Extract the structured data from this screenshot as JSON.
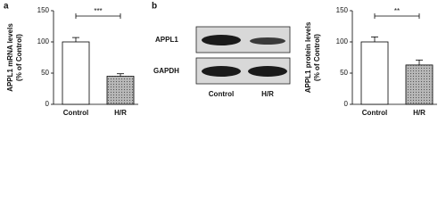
{
  "panel_labels": [
    "a",
    "b"
  ],
  "blot": {
    "bands": [
      "APPL1",
      "GAPDH"
    ],
    "lanes": [
      "Control",
      "H/R"
    ]
  },
  "chart_data": [
    {
      "type": "bar",
      "ylabel": [
        "APPL1 mRNA levels",
        "(% of Control)"
      ],
      "categories": [
        "Control",
        "H/R"
      ],
      "values": [
        100,
        45
      ],
      "errors": [
        7,
        4
      ],
      "colors": [
        "#ffffff",
        "#b8b8b8"
      ],
      "patterns": [
        null,
        "dots"
      ],
      "ylim": [
        0,
        150
      ],
      "yticks": [
        0,
        50,
        100,
        150
      ],
      "significance": "***"
    },
    {
      "type": "bar",
      "ylabel": [
        "APPL1 protein levels",
        "(% of Control)"
      ],
      "categories": [
        "Control",
        "H/R"
      ],
      "values": [
        100,
        63
      ],
      "errors": [
        8,
        8
      ],
      "colors": [
        "#ffffff",
        "#b8b8b8"
      ],
      "patterns": [
        null,
        "dots"
      ],
      "ylim": [
        0,
        150
      ],
      "yticks": [
        0,
        50,
        100,
        150
      ],
      "significance": "**"
    }
  ]
}
